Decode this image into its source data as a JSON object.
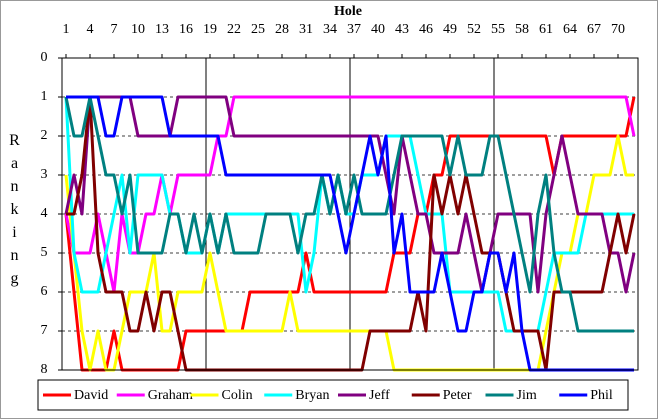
{
  "chart_data": {
    "type": "line",
    "title": "Hole",
    "y_label": "Ranking",
    "categories": [
      1,
      null,
      null,
      4,
      null,
      null,
      7,
      null,
      null,
      10,
      null,
      null,
      13,
      null,
      null,
      16,
      null,
      null,
      19,
      null,
      null,
      22,
      null,
      null,
      25,
      null,
      null,
      28,
      null,
      null,
      31,
      null,
      null,
      34,
      null,
      null,
      37,
      null,
      null,
      40,
      null,
      null,
      43,
      null,
      null,
      46,
      null,
      null,
      49,
      null,
      null,
      52,
      null,
      null,
      55,
      null,
      null,
      58,
      null,
      null,
      61,
      null,
      null,
      64,
      null,
      null,
      67,
      null,
      null,
      70,
      null,
      null
    ],
    "ylim": [
      0,
      8
    ],
    "yticks": [
      0,
      1,
      2,
      3,
      4,
      5,
      6,
      7,
      8
    ],
    "y_reversed": true,
    "grid": true,
    "legend": "bottom",
    "series": [
      {
        "name": "David",
        "color": "#ff0000",
        "values": [
          4,
          6,
          8,
          8,
          8,
          8,
          7,
          8,
          8,
          8,
          8,
          8,
          8,
          8,
          8,
          7,
          7,
          7,
          7,
          7,
          7,
          7,
          7,
          6,
          6,
          6,
          6,
          6,
          6,
          6,
          5,
          6,
          6,
          6,
          6,
          6,
          6,
          6,
          6,
          6,
          6,
          5,
          5,
          5,
          4,
          4,
          3,
          3,
          2,
          2,
          2,
          2,
          2,
          2,
          2,
          2,
          2,
          2,
          2,
          2,
          2,
          3,
          2,
          2,
          2,
          2,
          2,
          2,
          2,
          2,
          2,
          1
        ]
      },
      {
        "name": "Graham",
        "color": "#ff00ff",
        "values": [
          4,
          5,
          5,
          5,
          4,
          5,
          6,
          4,
          5,
          5,
          4,
          4,
          3,
          4,
          3,
          3,
          3,
          3,
          3,
          2,
          2,
          1,
          1,
          1,
          1,
          1,
          1,
          1,
          1,
          1,
          1,
          1,
          1,
          1,
          1,
          1,
          1,
          1,
          1,
          1,
          1,
          1,
          1,
          1,
          1,
          1,
          1,
          1,
          1,
          1,
          1,
          1,
          1,
          1,
          1,
          1,
          1,
          1,
          1,
          1,
          1,
          1,
          1,
          1,
          1,
          1,
          1,
          1,
          1,
          1,
          1,
          2
        ]
      },
      {
        "name": "Colin",
        "color": "#ffff00",
        "values": [
          3,
          5,
          7,
          8,
          7,
          8,
          8,
          7,
          6,
          6,
          6,
          5,
          7,
          7,
          6,
          6,
          6,
          6,
          5,
          6,
          7,
          7,
          7,
          7,
          7,
          7,
          7,
          7,
          6,
          7,
          7,
          7,
          7,
          7,
          7,
          7,
          7,
          7,
          7,
          7,
          7,
          8,
          8,
          8,
          8,
          8,
          8,
          8,
          8,
          8,
          8,
          8,
          8,
          8,
          8,
          8,
          8,
          8,
          8,
          8,
          7,
          6,
          5,
          5,
          4,
          4,
          3,
          3,
          3,
          2,
          3,
          3
        ]
      },
      {
        "name": "Bryan",
        "color": "#00ffff",
        "values": [
          1,
          5,
          6,
          6,
          6,
          5,
          4,
          3,
          5,
          3,
          3,
          3,
          3,
          4,
          4,
          5,
          5,
          5,
          4,
          5,
          4,
          4,
          4,
          4,
          4,
          4,
          4,
          4,
          4,
          4,
          6,
          5,
          3,
          4,
          3,
          4,
          4,
          3,
          3,
          3,
          2,
          2,
          2,
          2,
          3,
          4,
          4,
          4,
          6,
          6,
          6,
          6,
          6,
          6,
          6,
          7,
          7,
          7,
          7,
          7,
          6,
          5,
          5,
          5,
          5,
          4,
          4,
          4,
          4,
          4,
          4,
          4
        ]
      },
      {
        "name": "Jeff",
        "color": "#800080",
        "values": [
          4,
          3,
          4,
          1,
          1,
          1,
          1,
          1,
          1,
          2,
          2,
          2,
          2,
          2,
          1,
          1,
          1,
          1,
          1,
          1,
          1,
          2,
          2,
          2,
          2,
          2,
          2,
          2,
          2,
          2,
          2,
          2,
          2,
          2,
          2,
          2,
          2,
          2,
          2,
          2,
          3,
          4,
          2,
          3,
          4,
          4,
          5,
          5,
          5,
          5,
          4,
          5,
          6,
          5,
          4,
          4,
          4,
          4,
          4,
          6,
          4,
          3,
          2,
          3,
          4,
          4,
          4,
          4,
          5,
          5,
          6,
          5
        ]
      },
      {
        "name": "Peter",
        "color": "#800000",
        "values": [
          4,
          4,
          3,
          1,
          5,
          6,
          6,
          6,
          7,
          7,
          6,
          7,
          6,
          6,
          7,
          8,
          8,
          8,
          8,
          8,
          8,
          8,
          8,
          8,
          8,
          8,
          8,
          8,
          8,
          8,
          8,
          8,
          8,
          8,
          8,
          8,
          8,
          8,
          7,
          7,
          7,
          7,
          7,
          7,
          6,
          7,
          3,
          4,
          3,
          4,
          3,
          4,
          5,
          5,
          5,
          6,
          7,
          7,
          7,
          7,
          8,
          6,
          6,
          6,
          6,
          6,
          6,
          6,
          5,
          4,
          5,
          4
        ]
      },
      {
        "name": "Jim",
        "color": "#008080",
        "values": [
          1,
          2,
          2,
          1,
          2,
          3,
          3,
          4,
          3,
          5,
          5,
          5,
          5,
          4,
          4,
          5,
          4,
          5,
          4,
          5,
          4,
          5,
          5,
          5,
          5,
          4,
          4,
          4,
          4,
          5,
          4,
          4,
          3,
          4,
          3,
          4,
          3,
          4,
          4,
          4,
          4,
          3,
          2,
          2,
          2,
          2,
          2,
          2,
          3,
          2,
          3,
          3,
          3,
          2,
          2,
          3,
          4,
          5,
          6,
          4,
          3,
          5,
          6,
          6,
          7,
          7,
          7,
          7,
          7,
          7,
          7,
          7
        ]
      },
      {
        "name": "Phil",
        "color": "#0000ff",
        "values": [
          1,
          1,
          1,
          1,
          1,
          2,
          2,
          1,
          1,
          1,
          1,
          1,
          1,
          2,
          2,
          2,
          2,
          2,
          2,
          2,
          3,
          3,
          3,
          3,
          3,
          3,
          3,
          3,
          3,
          3,
          3,
          3,
          3,
          3,
          4,
          5,
          4,
          3,
          2,
          3,
          2,
          5,
          4,
          6,
          6,
          6,
          6,
          5,
          6,
          7,
          7,
          6,
          6,
          5,
          5,
          6,
          5,
          7,
          8,
          8,
          8,
          8,
          8,
          8,
          8,
          8,
          8,
          8,
          8,
          8,
          8,
          8
        ]
      }
    ]
  }
}
